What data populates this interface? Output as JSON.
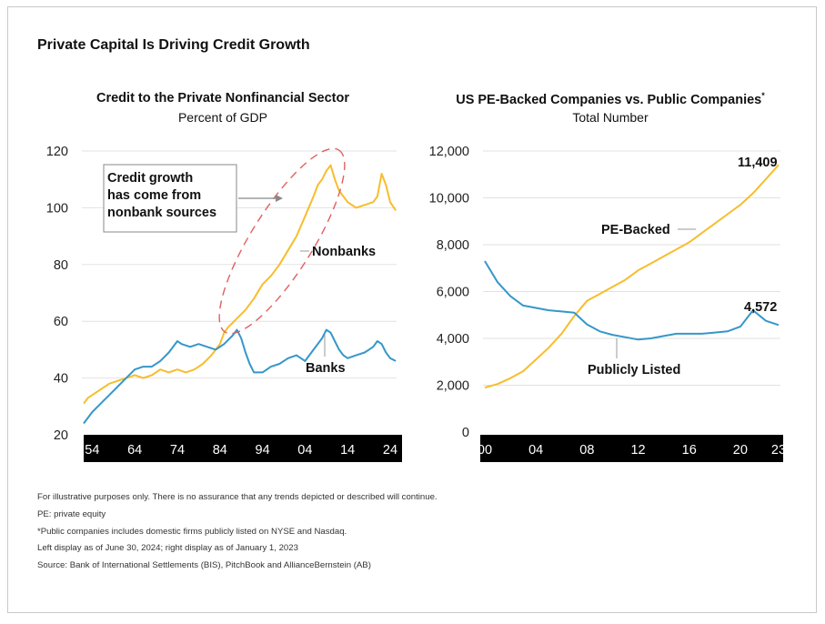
{
  "title": "Private Capital Is Driving Credit Growth",
  "colors": {
    "nonbanks": "#f7bd2c",
    "banks": "#3597c9",
    "pe_backed": "#f7bd2c",
    "public": "#3597c9",
    "ellipse": "#e06060",
    "axis_band": "#000000",
    "grid": "#e2e2e2"
  },
  "chart_data": [
    {
      "type": "line",
      "title": "Credit to the Private Nonfinancial Sector",
      "subtitle": "Percent of GDP",
      "yticks": [
        20,
        40,
        60,
        80,
        100,
        120
      ],
      "ylim": [
        20,
        120
      ],
      "xlim": [
        1952,
        2025.5
      ],
      "xtick_values": [
        1954,
        1964,
        1974,
        1984,
        1994,
        2004,
        2014,
        2024
      ],
      "xtick_labels": [
        "54",
        "64",
        "74",
        "84",
        "94",
        "04",
        "14",
        "24"
      ],
      "callout": "Credit growth has come from nonbank sources",
      "callout_lines": [
        "Credit growth",
        "has come from",
        "nonbank sources"
      ],
      "series": [
        {
          "name": "Nonbanks",
          "x": [
            1952,
            1953,
            1954,
            1956,
            1958,
            1960,
            1962,
            1964,
            1966,
            1968,
            1970,
            1972,
            1974,
            1976,
            1978,
            1980,
            1982,
            1984,
            1985,
            1986,
            1988,
            1990,
            1992,
            1994,
            1996,
            1998,
            2000,
            2002,
            2004,
            2006,
            2007,
            2008,
            2009,
            2010,
            2011,
            2012,
            2014,
            2016,
            2018,
            2020,
            2021,
            2022,
            2023,
            2024,
            2025.3
          ],
          "y": [
            31,
            33,
            34,
            36,
            38,
            39,
            40,
            41,
            40,
            41,
            43,
            42,
            43,
            42,
            43,
            45,
            48,
            52,
            56,
            58,
            61,
            64,
            68,
            73,
            76,
            80,
            85,
            90,
            97,
            104,
            108,
            110,
            113,
            115,
            110,
            106,
            102,
            100,
            101,
            102,
            104,
            112,
            108,
            102,
            99
          ]
        },
        {
          "name": "Banks",
          "x": [
            1952,
            1954,
            1956,
            1958,
            1960,
            1962,
            1964,
            1966,
            1968,
            1970,
            1972,
            1974,
            1975,
            1977,
            1979,
            1981,
            1983,
            1985,
            1987,
            1988,
            1989,
            1990,
            1991,
            1992,
            1994,
            1996,
            1998,
            2000,
            2002,
            2004,
            2006,
            2008,
            2009,
            2010,
            2011,
            2012,
            2013,
            2014,
            2016,
            2018,
            2019,
            2020,
            2021,
            2022,
            2023,
            2024,
            2025.3
          ],
          "y": [
            24,
            28,
            31,
            34,
            37,
            40,
            43,
            44,
            44,
            46,
            49,
            53,
            52,
            51,
            52,
            51,
            50,
            52,
            55,
            57,
            54,
            49,
            45,
            42,
            42,
            44,
            45,
            47,
            48,
            46,
            50,
            54,
            57,
            56,
            53,
            50,
            48,
            47,
            48,
            49,
            50,
            51,
            53,
            52,
            49,
            47,
            46
          ]
        }
      ]
    },
    {
      "type": "line",
      "title": "US PE-Backed Companies vs. Public Companies",
      "title_mark": "*",
      "subtitle": "Total Number",
      "yticks": [
        0,
        2000,
        4000,
        6000,
        8000,
        10000,
        12000
      ],
      "ytick_labels": [
        "0",
        "2,000",
        "4,000",
        "6,000",
        "8,000",
        "10,000",
        "12,000"
      ],
      "ylim": [
        0,
        12000
      ],
      "xlim": [
        2000,
        2023
      ],
      "xtick_values": [
        2000,
        2004,
        2008,
        2012,
        2016,
        2020,
        2023
      ],
      "xtick_labels": [
        "00",
        "04",
        "08",
        "12",
        "16",
        "20",
        "23"
      ],
      "series": [
        {
          "name": "PE-Backed",
          "x": [
            2000,
            2001,
            2002,
            2003,
            2004,
            2005,
            2006,
            2007,
            2008,
            2009,
            2010,
            2011,
            2012,
            2013,
            2014,
            2015,
            2016,
            2017,
            2018,
            2019,
            2020,
            2021,
            2022,
            2023
          ],
          "y": [
            1900,
            2050,
            2300,
            2600,
            3100,
            3600,
            4200,
            4950,
            5600,
            5900,
            6200,
            6500,
            6900,
            7200,
            7500,
            7800,
            8100,
            8500,
            8900,
            9300,
            9700,
            10200,
            10800,
            11409
          ],
          "end_label": "11,409"
        },
        {
          "name": "Publicly Listed",
          "x": [
            2000,
            2001,
            2002,
            2003,
            2004,
            2005,
            2006,
            2007,
            2008,
            2009,
            2010,
            2011,
            2012,
            2013,
            2014,
            2015,
            2016,
            2017,
            2018,
            2019,
            2020,
            2021,
            2022,
            2023
          ],
          "y": [
            7300,
            6400,
            5800,
            5400,
            5300,
            5200,
            5150,
            5100,
            4600,
            4300,
            4150,
            4050,
            3950,
            4000,
            4100,
            4200,
            4200,
            4200,
            4250,
            4300,
            4500,
            5200,
            4750,
            4572
          ],
          "end_label": "4,572"
        }
      ]
    }
  ],
  "footnotes": [
    "For illustrative purposes only. There is no assurance that any trends depicted or described will continue.",
    "PE: private equity",
    "*Public companies includes domestic firms publicly listed on NYSE and Nasdaq.",
    "Left display as of June 30, 2024; right display as of January 1, 2023",
    "Source: Bank of International Settlements (BIS), PitchBook and AllianceBernstein (AB)"
  ]
}
